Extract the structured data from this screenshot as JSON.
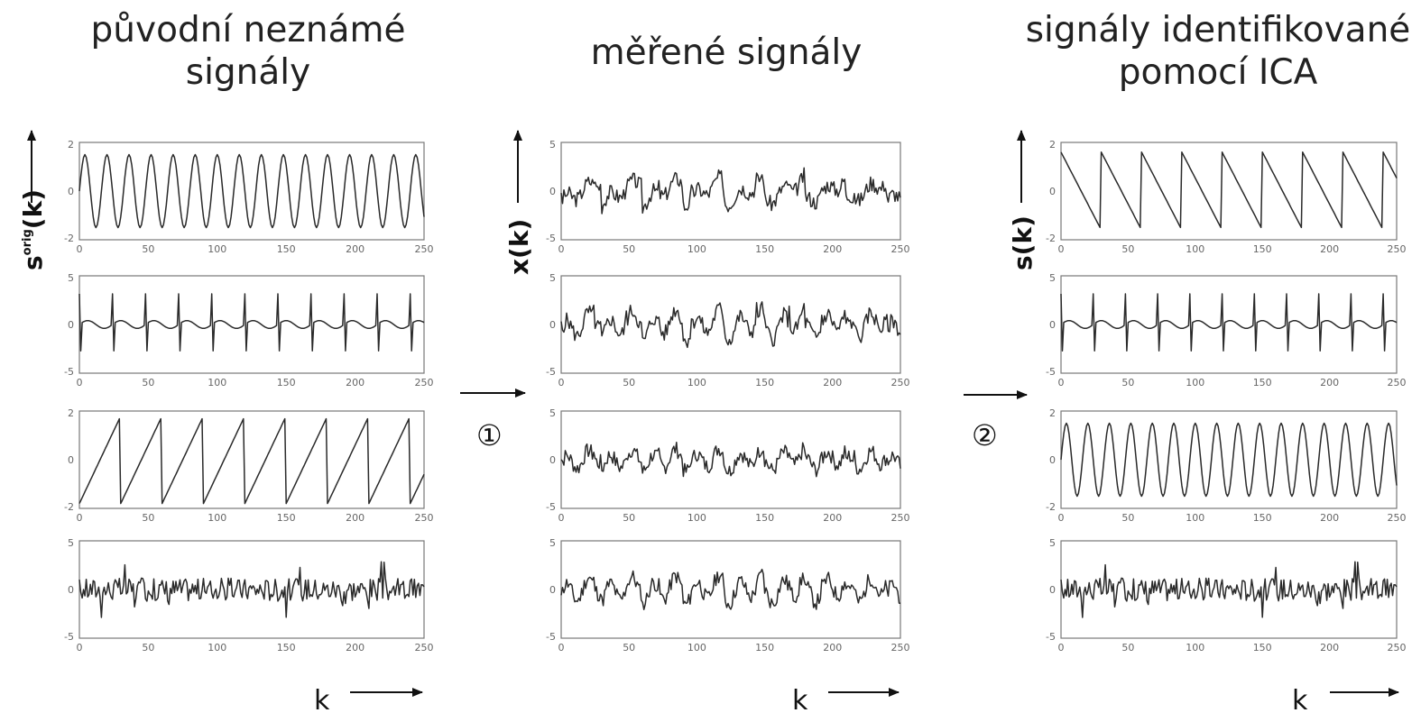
{
  "titles": {
    "left": [
      "původní neznámé",
      "signály"
    ],
    "middle": [
      "měřené signály"
    ],
    "right": [
      "signály identifikované",
      "pomocí ICA"
    ]
  },
  "ylabels": {
    "left": {
      "main": "s",
      "sup": "orig",
      "arg": "(k)"
    },
    "middle": {
      "main": "x(k)"
    },
    "right": {
      "main": "s(k)"
    }
  },
  "x_axis_label": "k",
  "steps": [
    "①",
    "②"
  ],
  "x_ticks": [
    "0",
    "50",
    "100",
    "150",
    "200",
    "250"
  ],
  "chart_data": [
    {
      "type": "line",
      "group": "původní neznámé signály",
      "signal": "sine",
      "period": 16,
      "amplitude": 1.5,
      "xlim": [
        0,
        250
      ],
      "ylim": [
        -2,
        2
      ],
      "yticks": [
        "2",
        "0",
        "-2"
      ]
    },
    {
      "type": "line",
      "group": "původní neznámé signály",
      "signal": "spike",
      "period": 24,
      "amplitude": 4.5,
      "xlim": [
        0,
        250
      ],
      "ylim": [
        -5,
        5
      ],
      "yticks": [
        "5",
        "0",
        "-5"
      ]
    },
    {
      "type": "line",
      "group": "původní neznámé signály",
      "signal": "sawtooth",
      "period": 30,
      "amplitude": 2,
      "xlim": [
        0,
        250
      ],
      "ylim": [
        -2,
        2
      ],
      "yticks": [
        "2",
        "0",
        "-2"
      ]
    },
    {
      "type": "line",
      "group": "původní neznámé signály",
      "signal": "noise",
      "amplitude": 1.2,
      "xlim": [
        0,
        250
      ],
      "ylim": [
        -5,
        5
      ],
      "yticks": [
        "5",
        "0",
        "-5"
      ]
    },
    {
      "type": "line",
      "group": "měřené signály",
      "signal": "mix",
      "seed": 3,
      "xlim": [
        0,
        250
      ],
      "ylim": [
        -5,
        5
      ],
      "yticks": [
        "5",
        "0",
        "-5"
      ]
    },
    {
      "type": "line",
      "group": "měřené signály",
      "signal": "mix",
      "seed": 5,
      "xlim": [
        0,
        250
      ],
      "ylim": [
        -5,
        5
      ],
      "yticks": [
        "5",
        "0",
        "-5"
      ]
    },
    {
      "type": "line",
      "group": "měřené signály",
      "signal": "mix",
      "seed": 7,
      "xlim": [
        0,
        250
      ],
      "ylim": [
        -5,
        5
      ],
      "yticks": [
        "5",
        "0",
        "-5"
      ]
    },
    {
      "type": "line",
      "group": "měřené signály",
      "signal": "mix",
      "seed": 11,
      "xlim": [
        0,
        250
      ],
      "ylim": [
        -5,
        5
      ],
      "yticks": [
        "5",
        "0",
        "-5"
      ]
    },
    {
      "type": "line",
      "group": "signály identifikované pomocí ICA",
      "signal": "sawtooth_down",
      "period": 30,
      "amplitude": 2,
      "xlim": [
        0,
        250
      ],
      "ylim": [
        -2,
        2
      ],
      "yticks": [
        "2",
        "0",
        "-2"
      ]
    },
    {
      "type": "line",
      "group": "signály identifikované pomocí ICA",
      "signal": "spike",
      "period": 24,
      "amplitude": 4.5,
      "xlim": [
        0,
        250
      ],
      "ylim": [
        -5,
        5
      ],
      "yticks": [
        "5",
        "0",
        "-5"
      ]
    },
    {
      "type": "line",
      "group": "signály identifikované pomocí ICA",
      "signal": "sine",
      "period": 16,
      "amplitude": 1.5,
      "xlim": [
        0,
        250
      ],
      "ylim": [
        -2,
        2
      ],
      "yticks": [
        "2",
        "0",
        "-2"
      ]
    },
    {
      "type": "line",
      "group": "signály identifikované pomocí ICA",
      "signal": "noise",
      "amplitude": 1.2,
      "xlim": [
        0,
        250
      ],
      "ylim": [
        -5,
        5
      ],
      "yticks": [
        "5",
        "0",
        "-5"
      ]
    }
  ]
}
